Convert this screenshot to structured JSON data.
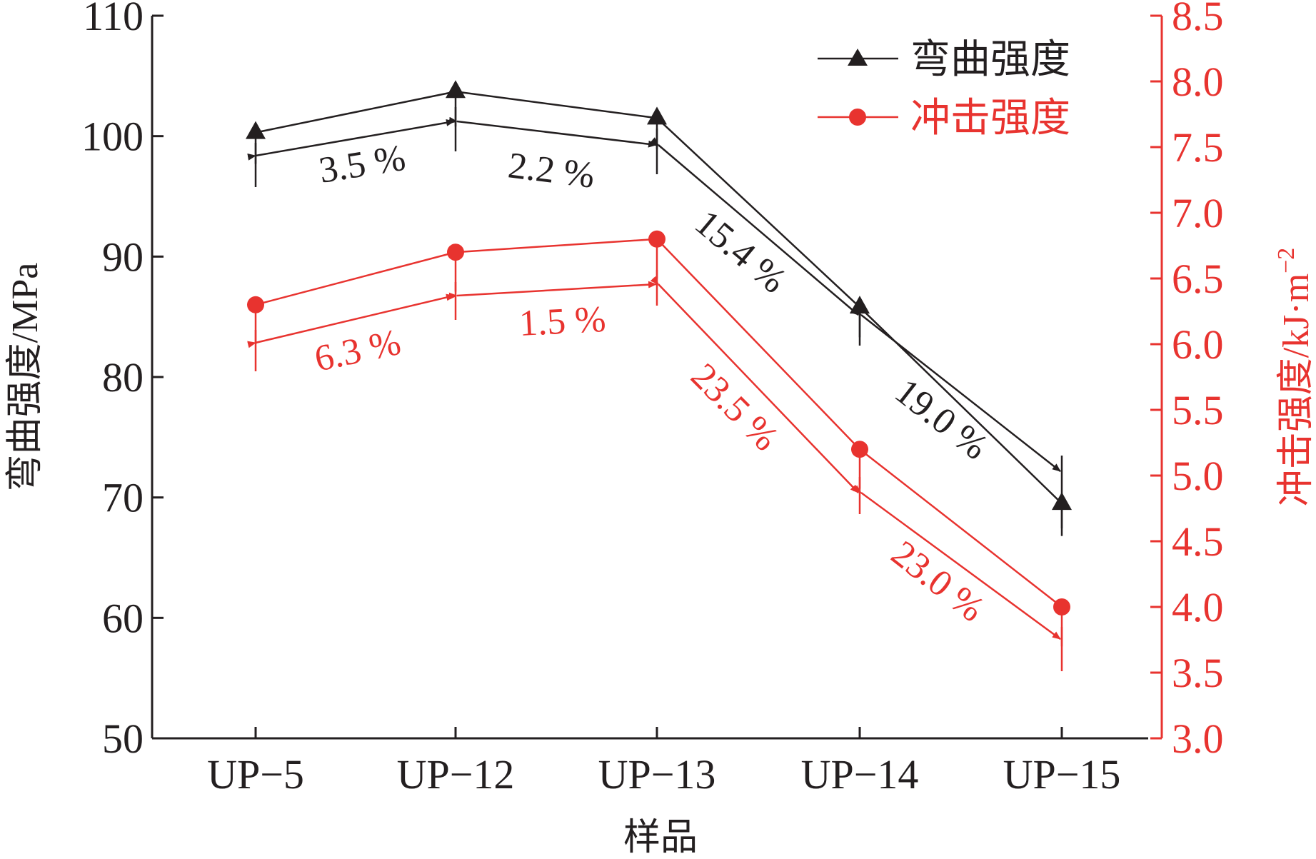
{
  "chart_data": {
    "type": "line",
    "categories": [
      "UP−5",
      "UP−12",
      "UP−13",
      "UP−14",
      "UP−15"
    ],
    "xlabel": "样品",
    "left_axis": {
      "label": "弯曲强度/MPa",
      "ylim": [
        50,
        110
      ],
      "ticks": [
        "50",
        "60",
        "70",
        "80",
        "90",
        "100",
        "110"
      ],
      "color": "#231f20"
    },
    "right_axis": {
      "label": "冲击强度/kJ·m",
      "label_superscript": "−2",
      "ylim": [
        3.0,
        8.5
      ],
      "ticks": [
        "3.0",
        "3.5",
        "4.0",
        "4.5",
        "5.0",
        "5.5",
        "6.0",
        "6.5",
        "7.0",
        "7.5",
        "8.0",
        "8.5"
      ],
      "color": "#e8332f"
    },
    "series": [
      {
        "name": "弯曲强度",
        "axis": "left",
        "color": "#231f20",
        "marker": "triangle",
        "values": [
          100.3,
          103.7,
          101.5,
          85.8,
          69.5
        ],
        "error": [
          2.6,
          2.9,
          2.6,
          2.5,
          2.7
        ]
      },
      {
        "name": "冲击强度",
        "axis": "right",
        "color": "#e8332f",
        "marker": "circle",
        "values": [
          6.3,
          6.7,
          6.8,
          5.2,
          4.0
        ],
        "error": [
          0.3,
          0.3,
          0.3,
          0.3,
          0.3
        ]
      }
    ],
    "annotations": {
      "flexural": [
        "3.5 %",
        "2.2 %",
        "15.4 %",
        "19.0 %"
      ],
      "impact": [
        "6.3 %",
        "1.5 %",
        "23.5 %",
        "23.0 %"
      ]
    },
    "legend_position": "top-right",
    "grid": false
  }
}
